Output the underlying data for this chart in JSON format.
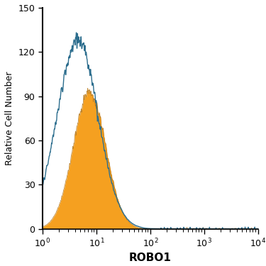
{
  "title": "",
  "xlabel": "ROBO1",
  "ylabel": "Relative Cell Number",
  "xlim_log": [
    1.0,
    10000.0
  ],
  "ylim": [
    0,
    150
  ],
  "yticks": [
    0,
    30,
    60,
    90,
    120,
    150
  ],
  "blue_peak_log": 0.65,
  "blue_sigma": 0.38,
  "blue_amp": 128,
  "orange_peak_log": 0.87,
  "orange_sigma": 0.3,
  "orange_amp": 93,
  "blue_color": "#2d6e8e",
  "orange_color": "#f5a020",
  "orange_edge_color": "#b07010",
  "bg_color": "#ffffff",
  "xlabel_fontsize": 11,
  "ylabel_fontsize": 9,
  "tick_fontsize": 9,
  "xlabel_fontweight": "bold"
}
